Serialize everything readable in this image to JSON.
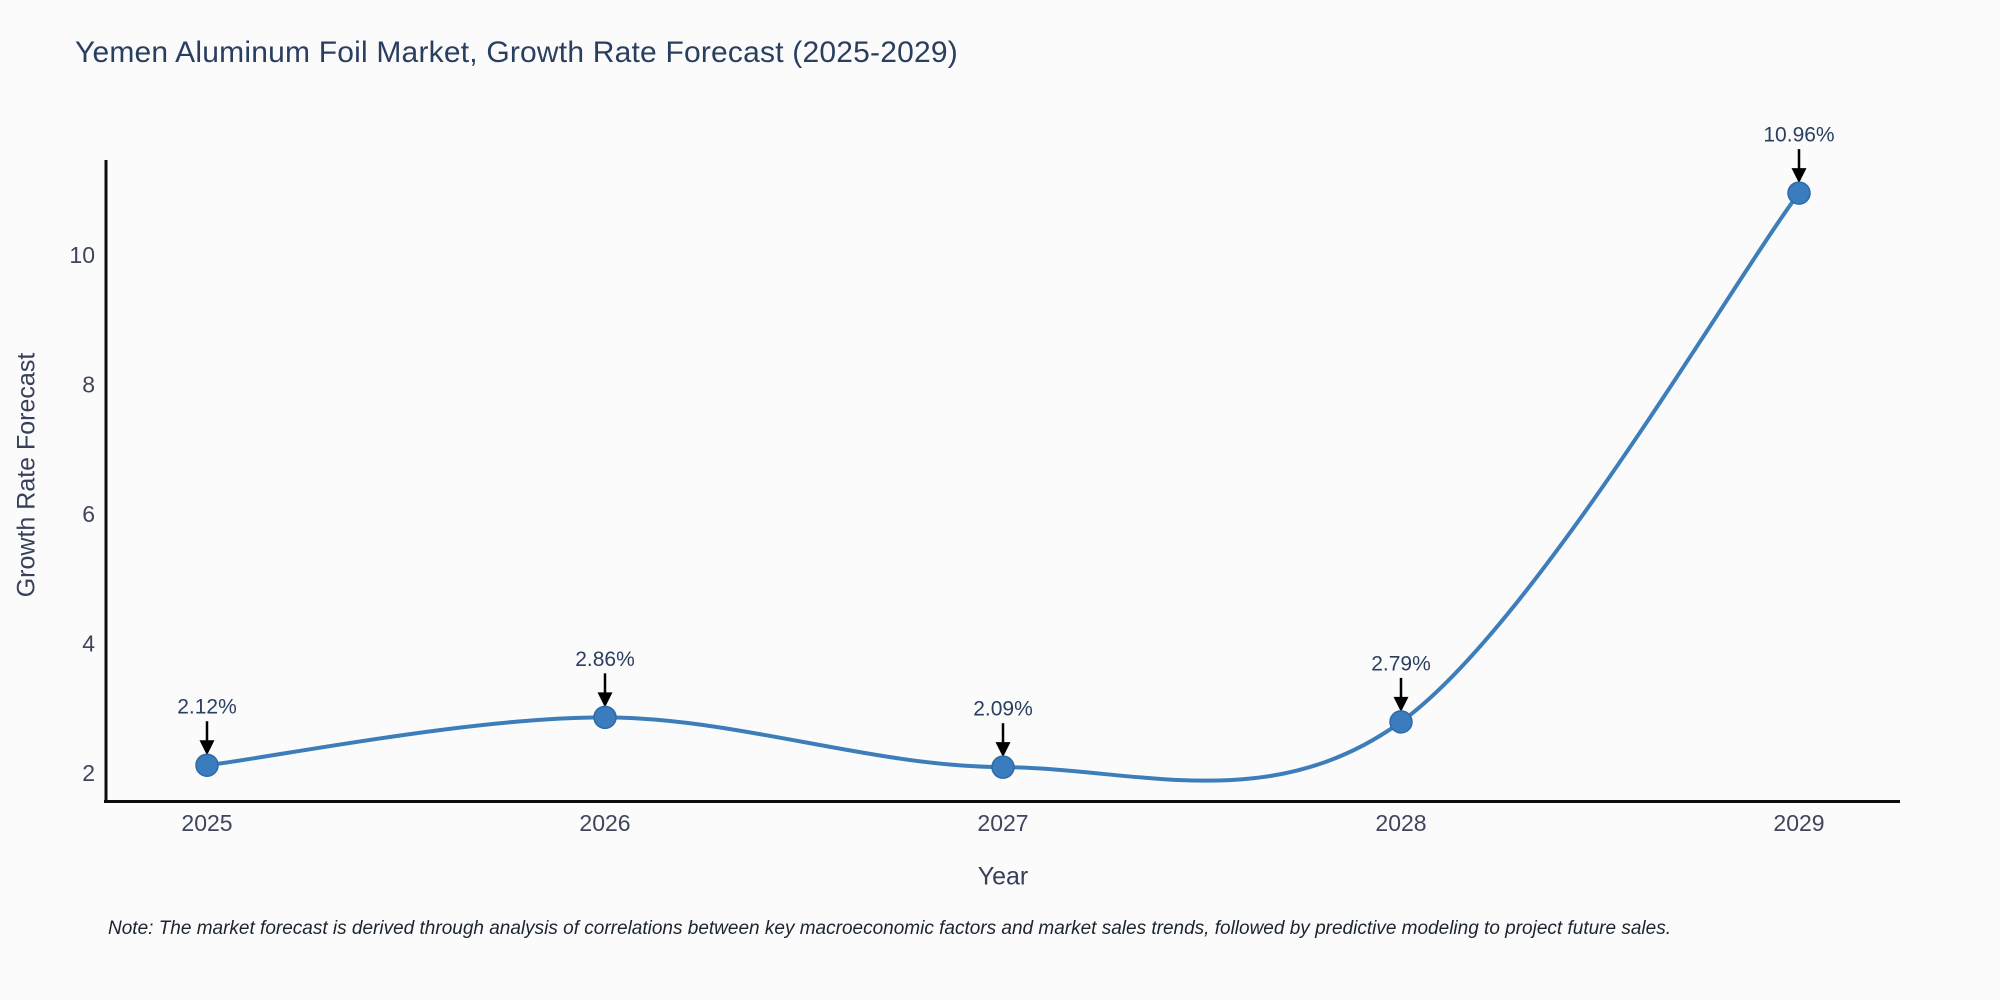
{
  "chart_data": {
    "type": "line",
    "title": "Yemen Aluminum Foil Market, Growth Rate Forecast (2025-2029)",
    "xlabel": "Year",
    "ylabel": "Growth Rate Forecast",
    "categories": [
      "2025",
      "2026",
      "2027",
      "2028",
      "2029"
    ],
    "values": [
      2.12,
      2.86,
      2.09,
      2.79,
      10.96
    ],
    "point_labels": [
      "2.12%",
      "2.86%",
      "2.09%",
      "2.79%",
      "10.96%"
    ],
    "yaxis_ticks": [
      "2",
      "4",
      "6",
      "8",
      "10"
    ],
    "yaxis_tick_values": [
      2,
      4,
      6,
      8,
      10
    ],
    "ylim": [
      1.55,
      11.4
    ],
    "line_shape": "spline",
    "grid": false,
    "legend_position": "none",
    "annotation_style": "value label with downward arrow at each point"
  },
  "note": {
    "text": "Note: The market forecast is derived through analysis of correlations between key macroeconomic factors and market sales trends, followed by predictive modeling to project future sales."
  },
  "colors": {
    "background": "#fbfbfb",
    "line": "#3d7eba",
    "marker_fill": "#3a7cbd",
    "marker_edge": "#2e6aa8",
    "axis_line": "#0d0d0d",
    "title_text": "#2a3f5f",
    "tick_text": "#3f455a",
    "annotation_text": "#2a3f5f",
    "arrow": "#000000"
  }
}
